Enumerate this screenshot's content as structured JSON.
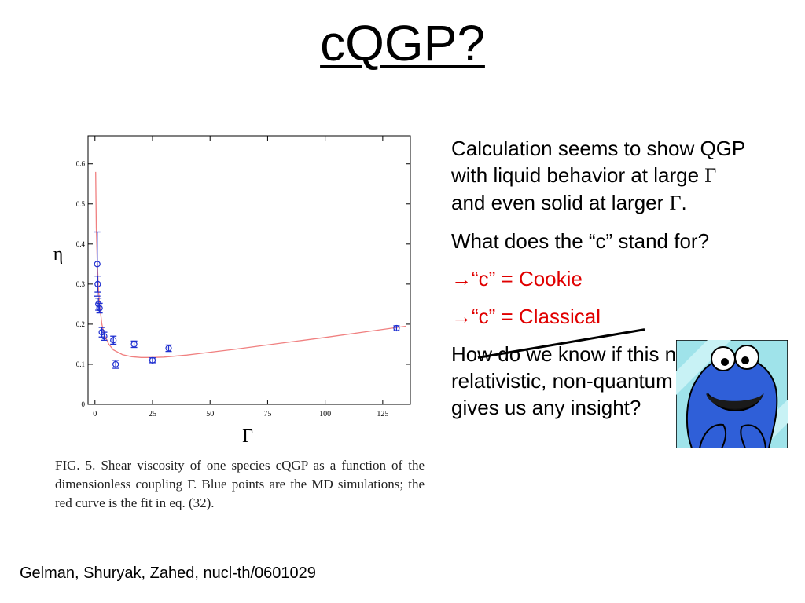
{
  "slide": {
    "title": " cQGP?",
    "citation": "Gelman, Shuryak, Zahed, nucl-th/0601029"
  },
  "bullets": {
    "p1_a": "Calculation seems to show QGP with liquid behavior at large ",
    "p1_gamma1": "Γ",
    "p1_b": " and even solid at larger ",
    "p1_gamma2": "Γ",
    "p1_c": ".",
    "p2": "What does the “c” stand for?",
    "arrow": "→",
    "p3": "“c” = Cookie",
    "p4": "“c” = Classical",
    "p5": "How do we know if this non-relativistic, non-quantum case gives us any insight?"
  },
  "figure": {
    "caption": "FIG. 5.  Shear viscosity of one species cQGP as a function of the dimensionless coupling Γ.  Blue points are the MD simulations; the red curve is the fit in eq. (32)."
  },
  "colors": {
    "points": "#1f2fd0",
    "fit_curve": "#f08080",
    "arrow_text": "#e00000"
  },
  "chart_data": {
    "type": "scatter",
    "xlabel": "Γ",
    "ylabel": "η",
    "xlim": [
      -3,
      137
    ],
    "ylim": [
      0,
      0.67
    ],
    "xticks": [
      0,
      25,
      50,
      75,
      100,
      125
    ],
    "yticks": [
      0,
      0.1,
      0.2,
      0.3,
      0.4,
      0.5,
      0.6
    ],
    "series": [
      {
        "type": "points_with_error",
        "x": [
          1,
          1.2,
          1.5,
          2,
          3,
          4,
          8,
          9,
          17,
          25,
          32,
          131
        ],
        "y": [
          0.35,
          0.3,
          0.25,
          0.24,
          0.18,
          0.17,
          0.16,
          0.1,
          0.15,
          0.11,
          0.14,
          0.19
        ],
        "err": [
          0.08,
          0.02,
          0.015,
          0.012,
          0.012,
          0.01,
          0.01,
          0.01,
          0.008,
          0.006,
          0.008,
          0.006
        ]
      },
      {
        "type": "fit_curve",
        "x": [
          0.3,
          0.6,
          1,
          1.5,
          2,
          3,
          4,
          6,
          8,
          12,
          16,
          20,
          25,
          30,
          40,
          50,
          60,
          80,
          100,
          120,
          135
        ],
        "y": [
          0.58,
          0.44,
          0.36,
          0.29,
          0.25,
          0.2,
          0.175,
          0.15,
          0.136,
          0.124,
          0.119,
          0.117,
          0.117,
          0.118,
          0.123,
          0.13,
          0.137,
          0.152,
          0.167,
          0.183,
          0.195
        ]
      }
    ]
  }
}
